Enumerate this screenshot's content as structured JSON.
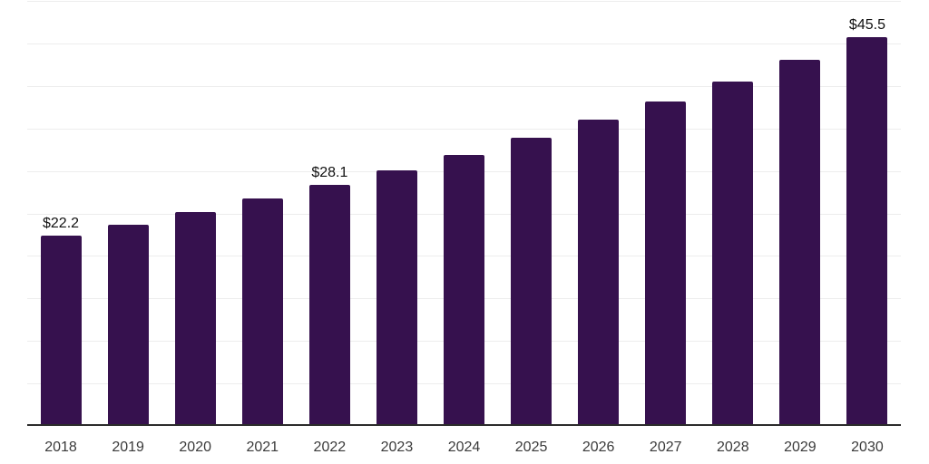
{
  "chart_data": {
    "type": "bar",
    "title": "",
    "xlabel": "",
    "ylabel": "",
    "categories": [
      "2018",
      "2019",
      "2020",
      "2021",
      "2022",
      "2023",
      "2024",
      "2025",
      "2026",
      "2027",
      "2028",
      "2029",
      "2030"
    ],
    "values": [
      22.2,
      23.5,
      24.9,
      26.5,
      28.1,
      29.9,
      31.7,
      33.7,
      35.8,
      38.0,
      40.3,
      42.9,
      45.5
    ],
    "bar_labels": [
      "$22.2",
      "",
      "",
      "",
      "$28.1",
      "",
      "",
      "",
      "",
      "",
      "",
      "",
      "$45.5"
    ],
    "ylim": [
      0,
      50
    ],
    "gridline_step": 5,
    "grid": true,
    "y_tick_labels_shown": false,
    "legend_position": "none",
    "colors": {
      "bar": "#36114E",
      "value_label": "#111111",
      "tick_label": "#3a3a3a",
      "axis_line": "#2b2b2b",
      "gridline": "#ededed",
      "background": "#ffffff"
    }
  }
}
